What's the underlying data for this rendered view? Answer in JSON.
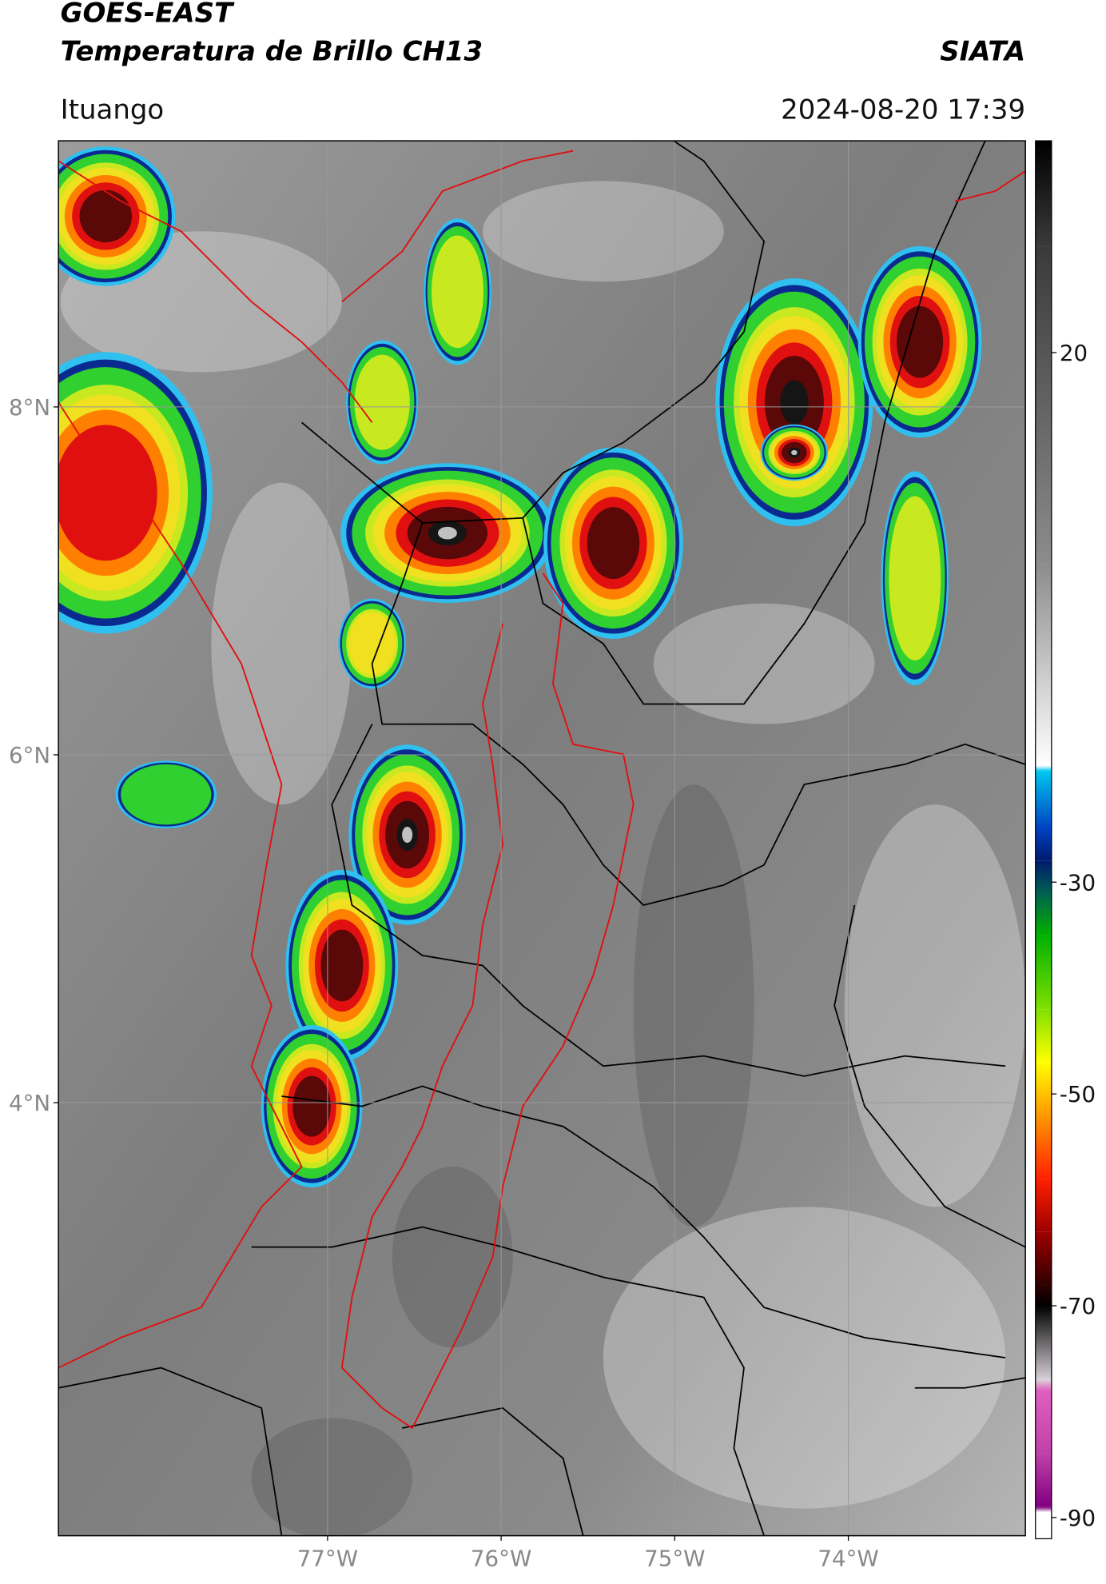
{
  "header": {
    "title": "GOES-EAST",
    "subtitle": "Temperatura de Brillo CH13",
    "source": "SIATA",
    "region": "Ituango",
    "timestamp": "2024-08-20 17:39"
  },
  "map": {
    "xlim": [
      -78.55,
      -72.98
    ],
    "ylim": [
      1.51,
      9.53
    ],
    "grid": true,
    "grid_color": "#9a9a9a",
    "xticks": [
      {
        "value": -77,
        "label": "77°W"
      },
      {
        "value": -76,
        "label": "76°W"
      },
      {
        "value": -75,
        "label": "75°W"
      },
      {
        "value": -74,
        "label": "74°W"
      }
    ],
    "yticks": [
      {
        "value": 4,
        "label": "4°N"
      },
      {
        "value": 6,
        "label": "6°N"
      },
      {
        "value": 8,
        "label": "8°N"
      }
    ]
  },
  "colorbar": {
    "lim": [
      -92,
      40
    ],
    "ticks": [
      -90,
      -70,
      -50,
      -30,
      20
    ],
    "stops": [
      {
        "value": 40,
        "color": "#000000"
      },
      {
        "value": 30,
        "color": "#3a3a3a"
      },
      {
        "value": 0,
        "color": "#8c8c8c"
      },
      {
        "value": -19,
        "color": "#ffffff"
      },
      {
        "value": -19.5,
        "color": "#00c8f0"
      },
      {
        "value": -25,
        "color": "#0040c0"
      },
      {
        "value": -28,
        "color": "#001a6e"
      },
      {
        "value": -31,
        "color": "#006050"
      },
      {
        "value": -35,
        "color": "#00b000"
      },
      {
        "value": -42,
        "color": "#80e000"
      },
      {
        "value": -47,
        "color": "#ffff00"
      },
      {
        "value": -52,
        "color": "#ff9900"
      },
      {
        "value": -58,
        "color": "#ff2000"
      },
      {
        "value": -63,
        "color": "#a00000"
      },
      {
        "value": -68,
        "color": "#300000"
      },
      {
        "value": -70,
        "color": "#000000"
      },
      {
        "value": -77,
        "color": "#d8d0d8"
      },
      {
        "value": -78,
        "color": "#e060c0"
      },
      {
        "value": -84,
        "color": "#c040a8"
      },
      {
        "value": -89,
        "color": "#800080"
      },
      {
        "value": -89.5,
        "color": "#ffffff"
      },
      {
        "value": -92,
        "color": "#ffffff"
      }
    ]
  }
}
